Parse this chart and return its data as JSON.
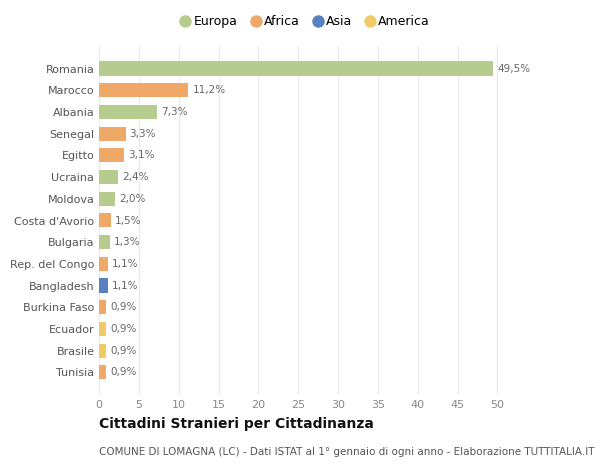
{
  "countries": [
    "Romania",
    "Marocco",
    "Albania",
    "Senegal",
    "Egitto",
    "Ucraina",
    "Moldova",
    "Costa d'Avorio",
    "Bulgaria",
    "Rep. del Congo",
    "Bangladesh",
    "Burkina Faso",
    "Ecuador",
    "Brasile",
    "Tunisia"
  ],
  "values": [
    49.5,
    11.2,
    7.3,
    3.3,
    3.1,
    2.4,
    2.0,
    1.5,
    1.3,
    1.1,
    1.1,
    0.9,
    0.9,
    0.9,
    0.9
  ],
  "labels": [
    "49,5%",
    "11,2%",
    "7,3%",
    "3,3%",
    "3,1%",
    "2,4%",
    "2,0%",
    "1,5%",
    "1,3%",
    "1,1%",
    "1,1%",
    "0,9%",
    "0,9%",
    "0,9%",
    "0,9%"
  ],
  "continents": [
    "Europa",
    "Africa",
    "Europa",
    "Africa",
    "Africa",
    "Europa",
    "Europa",
    "Africa",
    "Europa",
    "Africa",
    "Asia",
    "Africa",
    "America",
    "America",
    "Africa"
  ],
  "continent_colors": {
    "Europa": "#b5cc8e",
    "Africa": "#f0a868",
    "Asia": "#5b80bf",
    "America": "#f0cc68"
  },
  "legend_order": [
    "Europa",
    "Africa",
    "Asia",
    "America"
  ],
  "title": "Cittadini Stranieri per Cittadinanza",
  "subtitle": "COMUNE DI LOMAGNA (LC) - Dati ISTAT al 1° gennaio di ogni anno - Elaborazione TUTTITALIA.IT",
  "xlim": [
    0,
    52
  ],
  "xticks": [
    0,
    5,
    10,
    15,
    20,
    25,
    30,
    35,
    40,
    45,
    50
  ],
  "background_color": "#ffffff",
  "grid_color": "#e8e8e8"
}
